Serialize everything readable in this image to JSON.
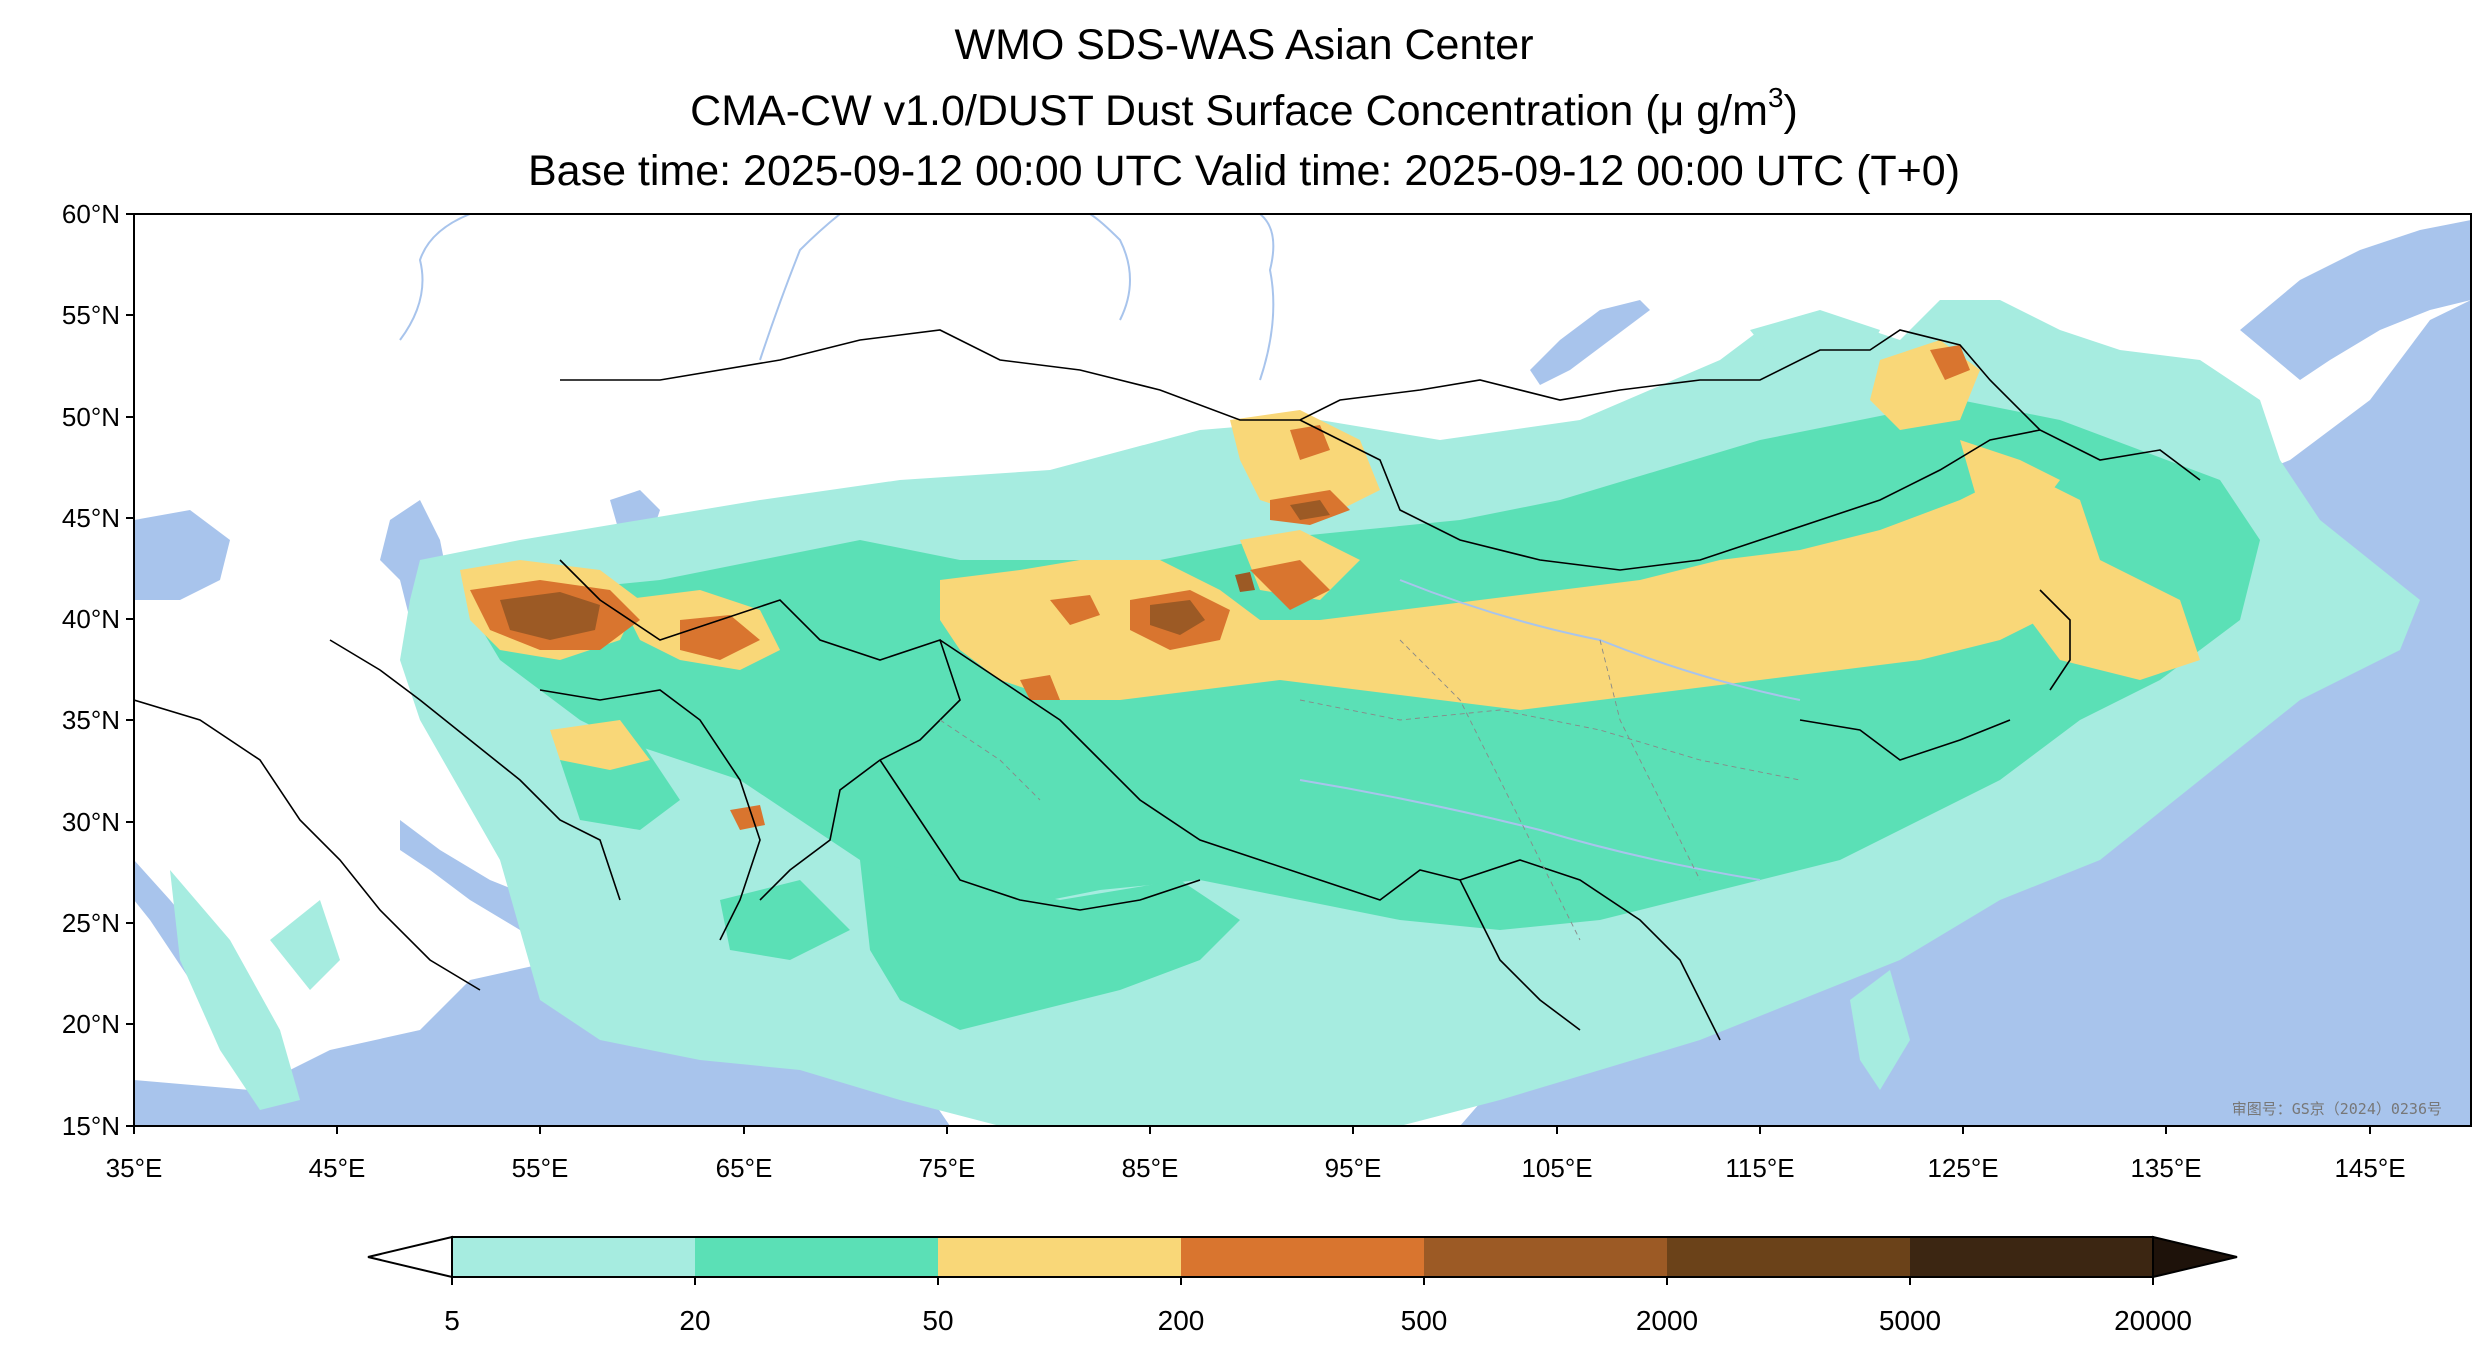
{
  "title": {
    "line1": "WMO SDS-WAS Asian Center",
    "line2_main": "CMA-CW v1.0/DUST Dust Surface Concentration (μ g/m",
    "line2_sup": "3",
    "line2_end": ")",
    "line3": "Base time: 2025-09-12 00:00 UTC Valid time: 2025-09-12 00:00 UTC (T+0)"
  },
  "map": {
    "lon_range": [
      35,
      150
    ],
    "lat_range": [
      15,
      60
    ],
    "lon_ticks": [
      "35°E",
      "45°E",
      "55°E",
      "65°E",
      "75°E",
      "85°E",
      "95°E",
      "105°E",
      "115°E",
      "125°E",
      "135°E",
      "145°E"
    ],
    "lat_ticks": [
      "60°N",
      "55°N",
      "50°N",
      "45°N",
      "40°N",
      "35°N",
      "30°N",
      "25°N",
      "20°N",
      "15°N"
    ],
    "ocean_color": "#a8c4ec",
    "watermark": "审图号：GS京（2024）0236号"
  },
  "colorbar": {
    "levels": [
      "5",
      "20",
      "50",
      "200",
      "500",
      "2000",
      "5000",
      "20000"
    ],
    "colors": [
      "#a6ece0",
      "#5be0b6",
      "#f9d778",
      "#d9752f",
      "#9c5a25",
      "#6b4219",
      "#3c2612"
    ],
    "under_color": "#ffffff",
    "over_color": "#1e120a"
  }
}
